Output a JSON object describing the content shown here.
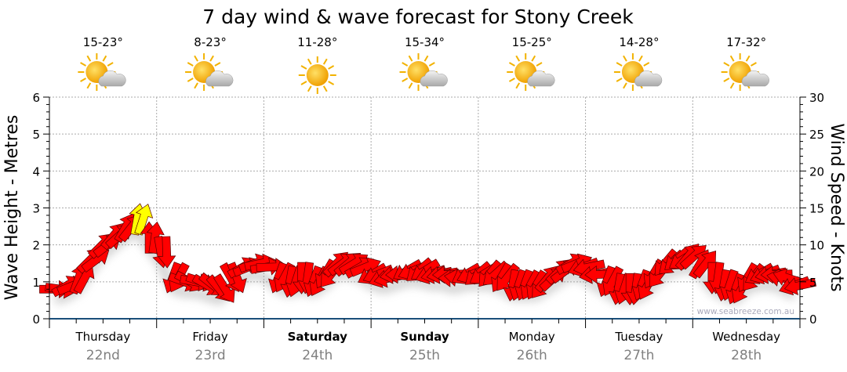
{
  "chart_data": {
    "type": "scatter",
    "title": "7 day wind & wave forecast for Stony Creek",
    "ylabel_left": "Wave Height - Metres",
    "ylabel_right": "Wind Speed - Knots",
    "ylim_left": [
      0,
      6
    ],
    "ylim_right": [
      0,
      30
    ],
    "yticks_left": [
      "0",
      "1",
      "2",
      "3",
      "4",
      "5",
      "6"
    ],
    "yticks_right": [
      "0",
      "5",
      "10",
      "15",
      "20",
      "25",
      "30"
    ],
    "grid": true,
    "watermark": "www.seabreeze.com.au",
    "days": [
      {
        "name": "Thursday",
        "date": "22nd",
        "temp": "15-23°",
        "icon": "sun-cloud",
        "weekend": false
      },
      {
        "name": "Friday",
        "date": "23rd",
        "temp": "8-23°",
        "icon": "sun-cloud",
        "weekend": false
      },
      {
        "name": "Saturday",
        "date": "24th",
        "temp": "11-28°",
        "icon": "sun",
        "weekend": true
      },
      {
        "name": "Sunday",
        "date": "25th",
        "temp": "15-34°",
        "icon": "sun-cloud",
        "weekend": true
      },
      {
        "name": "Monday",
        "date": "26th",
        "temp": "15-25°",
        "icon": "sun-cloud",
        "weekend": false
      },
      {
        "name": "Tuesday",
        "date": "27th",
        "temp": "14-28°",
        "icon": "sun-cloud",
        "weekend": false
      },
      {
        "name": "Wednesday",
        "date": "28th",
        "temp": "17-32°",
        "icon": "sun-cloud",
        "weekend": false
      }
    ],
    "interval_hours": 3,
    "wind_knots": [
      4,
      4.5,
      5.5,
      8,
      10,
      11.3,
      12.4,
      13.5,
      11,
      9,
      5.5,
      5,
      5,
      4.5,
      4,
      5.5,
      7,
      7.5,
      7,
      5.5,
      5,
      5.5,
      5,
      6,
      7.5,
      7.5,
      7,
      6,
      5.5,
      6,
      6.5,
      6.5,
      6,
      6,
      5.5,
      6,
      6,
      6,
      5.5,
      4.5,
      4.5,
      4.5,
      5.5,
      6.5,
      7.5,
      7,
      6,
      5,
      4,
      4,
      4.5,
      6,
      7.5,
      8,
      8.5,
      7.5,
      5.5,
      4.5,
      4,
      5.5,
      6,
      6,
      5.5,
      4.5
    ],
    "wind_direction_deg": [
      90,
      60,
      20,
      45,
      45,
      40,
      30,
      10,
      0,
      170,
      200,
      110,
      100,
      120,
      140,
      150,
      60,
      70,
      80,
      200,
      190,
      180,
      200,
      210,
      45,
      50,
      60,
      240,
      250,
      260,
      240,
      230,
      250,
      260,
      270,
      240,
      230,
      220,
      210,
      190,
      200,
      210,
      40,
      45,
      60,
      250,
      260,
      200,
      190,
      180,
      200,
      210,
      220,
      230,
      40,
      30,
      180,
      190,
      200,
      210,
      240,
      260,
      280,
      250
    ],
    "wave_height_m": [
      0.6,
      0.7,
      0.9,
      1.2,
      1.5,
      1.7,
      1.8,
      1.8,
      1.5,
      1.1,
      0.8,
      0.8,
      0.8,
      0.7,
      0.7,
      0.8,
      0.9,
      1.0,
      1.0,
      0.9,
      0.8,
      0.8,
      0.8,
      0.9,
      1.0,
      1.0,
      1.0,
      0.9,
      0.9,
      0.9,
      0.9,
      0.9,
      0.9,
      0.9,
      0.9,
      0.9,
      0.9,
      0.8,
      0.7,
      0.7,
      0.7,
      0.7,
      0.8,
      0.9,
      1.0,
      1.0,
      0.9,
      0.8,
      0.7,
      0.6,
      0.6,
      0.7,
      0.9,
      1.0,
      1.1,
      1.0,
      0.8,
      0.7,
      0.6,
      0.7,
      0.8,
      0.8,
      0.7,
      0.6
    ],
    "highlight_color": "#ffff00",
    "arrow_color": "#ff0000",
    "highlight_threshold_knots": 13
  }
}
